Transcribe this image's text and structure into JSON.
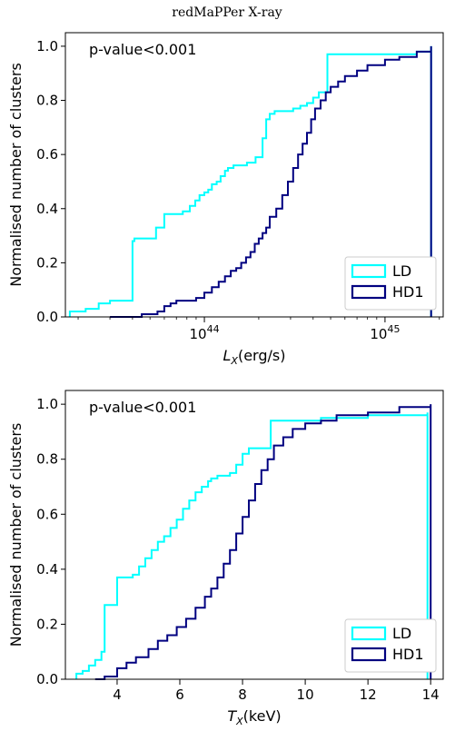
{
  "figure_title": "redMaPPer X-ray",
  "colors": {
    "LD": "#00ffff",
    "HD1": "#000080"
  },
  "chart_data": [
    {
      "type": "line",
      "subtype": "empirical cumulative distribution (step)",
      "annotation": "p-value<0.001",
      "ylabel": "Normalised number of clusters",
      "xlabel": {
        "main": "L",
        "sub": "X",
        "units": "(erg/s)"
      },
      "xscale": "log",
      "xlim": [
        1.7e+43,
        2.1e+45
      ],
      "ylim": [
        0.0,
        1.05
      ],
      "x_ticks": [
        {
          "value": 1e+44,
          "base": "10",
          "exp": "44"
        },
        {
          "value": 1e+45,
          "base": "10",
          "exp": "45"
        }
      ],
      "y_ticks": [
        "0.0",
        "0.2",
        "0.4",
        "0.6",
        "0.8",
        "1.0"
      ],
      "legend": {
        "position": "lower right",
        "entries": [
          "LD",
          "HD1"
        ]
      },
      "grid": false,
      "series": [
        {
          "name": "LD",
          "x": [
            1.8e+43,
            2.2e+43,
            2.6e+43,
            3e+43,
            4e+43,
            4.1e+43,
            5.3e+43,
            5.4e+43,
            6e+43,
            6.2e+43,
            7.6e+43,
            8.3e+43,
            8.9e+43,
            9.4e+43,
            1e+44,
            1.05e+44,
            1.1e+44,
            1.17e+44,
            1.23e+44,
            1.3e+44,
            1.35e+44,
            1.45e+44,
            1.55e+44,
            1.62e+44,
            1.72e+44,
            1.92e+44,
            2.05e+44,
            2.1e+44,
            2.2e+44,
            2.3e+44,
            2.45e+44,
            2.8e+44,
            3.1e+44,
            3.4e+44,
            3.7e+44,
            4e+44,
            4.3e+44,
            4.8e+44,
            1.5e+45,
            1.8e+45
          ],
          "y": [
            0.02,
            0.03,
            0.05,
            0.06,
            0.28,
            0.29,
            0.29,
            0.33,
            0.38,
            0.38,
            0.39,
            0.41,
            0.43,
            0.45,
            0.46,
            0.47,
            0.49,
            0.5,
            0.52,
            0.54,
            0.55,
            0.56,
            0.56,
            0.56,
            0.57,
            0.59,
            0.59,
            0.66,
            0.73,
            0.75,
            0.76,
            0.76,
            0.77,
            0.78,
            0.79,
            0.81,
            0.83,
            0.97,
            0.98,
            1.0
          ]
        },
        {
          "name": "HD1",
          "x": [
            3e+43,
            4.5e+43,
            5.5e+43,
            6e+43,
            6.5e+43,
            7e+43,
            8e+43,
            9e+43,
            1e+44,
            1.1e+44,
            1.2e+44,
            1.3e+44,
            1.4e+44,
            1.5e+44,
            1.6e+44,
            1.7e+44,
            1.8e+44,
            1.9e+44,
            2e+44,
            2.1e+44,
            2.2e+44,
            2.3e+44,
            2.5e+44,
            2.7e+44,
            2.9e+44,
            3.1e+44,
            3.3e+44,
            3.5e+44,
            3.7e+44,
            3.9e+44,
            4.1e+44,
            4.4e+44,
            4.7e+44,
            5e+44,
            5.5e+44,
            6e+44,
            7e+44,
            8e+44,
            1e+45,
            1.2e+45,
            1.5e+45,
            1.8e+45
          ],
          "y": [
            0.0,
            0.01,
            0.02,
            0.04,
            0.05,
            0.06,
            0.06,
            0.07,
            0.09,
            0.11,
            0.13,
            0.15,
            0.17,
            0.18,
            0.2,
            0.22,
            0.24,
            0.27,
            0.29,
            0.31,
            0.33,
            0.37,
            0.4,
            0.45,
            0.5,
            0.55,
            0.6,
            0.64,
            0.68,
            0.73,
            0.77,
            0.8,
            0.83,
            0.85,
            0.87,
            0.89,
            0.91,
            0.93,
            0.95,
            0.96,
            0.98,
            1.0
          ]
        }
      ]
    },
    {
      "type": "line",
      "subtype": "empirical cumulative distribution (step)",
      "annotation": "p-value<0.001",
      "ylabel": "Normalised number of clusters",
      "xlabel": {
        "main": "T",
        "sub": "X",
        "units": "(keV)"
      },
      "xscale": "linear",
      "xlim": [
        2.35,
        14.4
      ],
      "ylim": [
        0.0,
        1.05
      ],
      "x_ticks": [
        {
          "value": 4,
          "label": "4"
        },
        {
          "value": 6,
          "label": "6"
        },
        {
          "value": 8,
          "label": "8"
        },
        {
          "value": 10,
          "label": "10"
        },
        {
          "value": 12,
          "label": "12"
        },
        {
          "value": 14,
          "label": "14"
        }
      ],
      "y_ticks": [
        "0.0",
        "0.2",
        "0.4",
        "0.6",
        "0.8",
        "1.0"
      ],
      "legend": {
        "position": "lower right",
        "entries": [
          "LD",
          "HD1"
        ]
      },
      "grid": false,
      "series": [
        {
          "name": "LD",
          "x": [
            2.7,
            2.9,
            3.1,
            3.3,
            3.5,
            3.6,
            4.0,
            4.1,
            4.5,
            4.7,
            4.9,
            5.1,
            5.3,
            5.5,
            5.7,
            5.9,
            6.1,
            6.3,
            6.5,
            6.7,
            6.9,
            7.0,
            7.2,
            7.4,
            7.6,
            7.8,
            8.0,
            8.2,
            8.5,
            8.9,
            9.5,
            10.5,
            12.0,
            13.0,
            13.9
          ],
          "y": [
            0.02,
            0.03,
            0.05,
            0.07,
            0.1,
            0.27,
            0.37,
            0.37,
            0.38,
            0.41,
            0.44,
            0.47,
            0.5,
            0.52,
            0.55,
            0.58,
            0.62,
            0.65,
            0.68,
            0.7,
            0.72,
            0.73,
            0.74,
            0.74,
            0.75,
            0.78,
            0.82,
            0.84,
            0.84,
            0.94,
            0.94,
            0.95,
            0.96,
            0.96,
            0.97
          ]
        },
        {
          "name": "HD1",
          "x": [
            3.3,
            3.6,
            4.0,
            4.3,
            4.6,
            5.0,
            5.3,
            5.6,
            5.9,
            6.2,
            6.5,
            6.8,
            7.0,
            7.2,
            7.4,
            7.6,
            7.8,
            8.0,
            8.2,
            8.4,
            8.6,
            8.8,
            9.0,
            9.3,
            9.6,
            10.0,
            10.5,
            11.0,
            12.0,
            13.0,
            14.0
          ],
          "y": [
            0.0,
            0.01,
            0.04,
            0.06,
            0.08,
            0.11,
            0.14,
            0.16,
            0.19,
            0.22,
            0.26,
            0.3,
            0.33,
            0.37,
            0.42,
            0.47,
            0.53,
            0.59,
            0.65,
            0.71,
            0.76,
            0.8,
            0.85,
            0.88,
            0.91,
            0.93,
            0.94,
            0.96,
            0.97,
            0.99,
            1.0
          ]
        }
      ]
    }
  ]
}
